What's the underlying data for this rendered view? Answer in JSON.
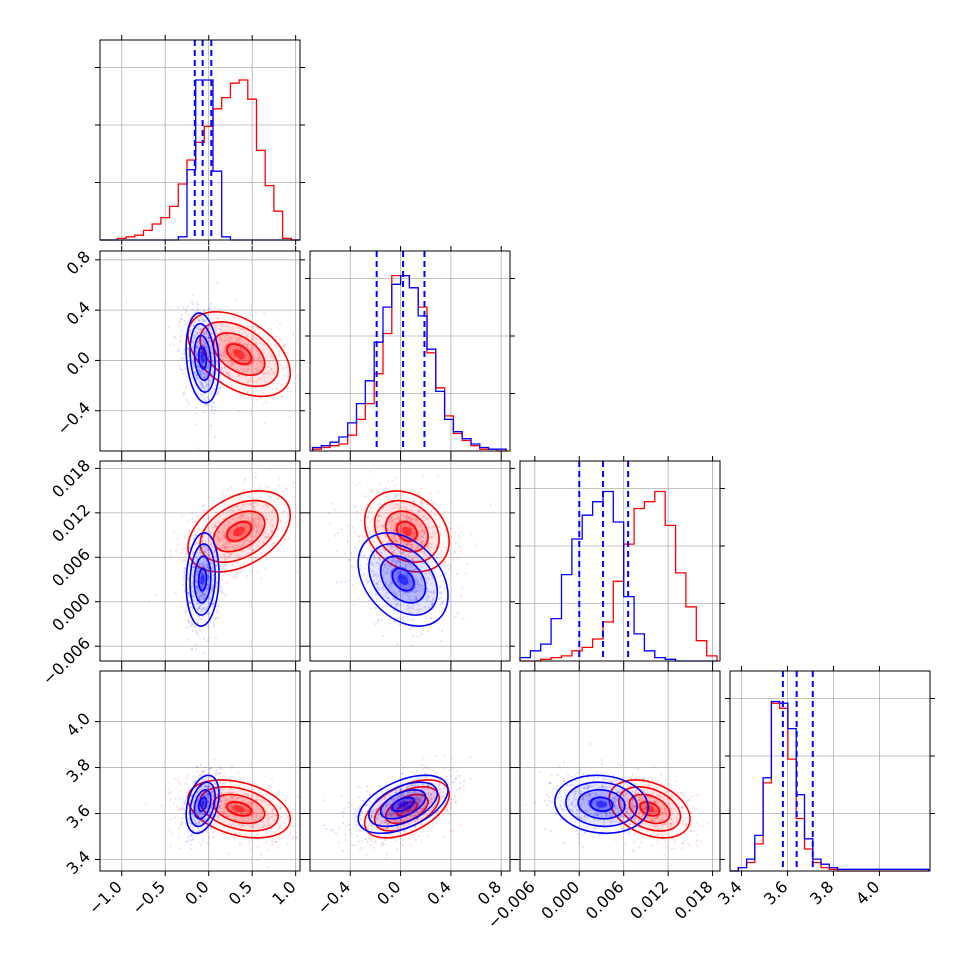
{
  "chart_data": {
    "type": "corner",
    "title": "",
    "colors": {
      "primary": "#0000ff",
      "secondary": "#ff0000"
    },
    "grid": true,
    "series": [
      {
        "color": "#0000ff",
        "means": [
          -0.07,
          0.02,
          0.003,
          3.64
        ],
        "stds": [
          0.09,
          0.17,
          0.003,
          0.06
        ]
      },
      {
        "color": "#ff0000",
        "means": [
          0.35,
          0.05,
          0.0095,
          3.62
        ],
        "stds": [
          0.28,
          0.16,
          0.0026,
          0.06
        ]
      }
    ],
    "parameters": [
      {
        "range": [
          -1.25,
          1.05
        ],
        "ticks": [
          -1.0,
          -0.5,
          0.0,
          0.5,
          1.0
        ],
        "tick_labels": [
          "−1.0",
          "−0.5",
          "0.0",
          "0.5",
          "1.0"
        ]
      },
      {
        "range": [
          -0.72,
          0.87
        ],
        "ticks": [
          -0.4,
          0.0,
          0.4,
          0.8
        ],
        "tick_labels": [
          "−0.4",
          "0.0",
          "0.4",
          "0.8"
        ]
      },
      {
        "range": [
          -0.008,
          0.019
        ],
        "ticks": [
          -0.006,
          0.0,
          0.006,
          0.012,
          0.018
        ],
        "tick_labels": [
          "−0.006",
          "0.000",
          "0.006",
          "0.012",
          "0.018"
        ]
      },
      {
        "range": [
          3.35,
          4.22
        ],
        "ticks": [
          3.4,
          3.6,
          3.8,
          4.0
        ],
        "tick_labels": [
          "3.4",
          "3.6",
          "3.8",
          "4.0"
        ]
      }
    ],
    "diagonal": [
      {
        "bin_edges": [
          -1.25,
          -1.15,
          -1.05,
          -0.95,
          -0.85,
          -0.75,
          -0.65,
          -0.55,
          -0.45,
          -0.35,
          -0.25,
          -0.15,
          -0.05,
          0.05,
          0.15,
          0.25,
          0.35,
          0.45,
          0.55,
          0.65,
          0.75,
          0.85,
          0.95,
          1.05
        ],
        "hist_blue": [
          0,
          0,
          0,
          0,
          0,
          0,
          0,
          0,
          0,
          0.02,
          0.44,
          1.0,
          1.0,
          0.43,
          0.02,
          0,
          0,
          0,
          0,
          0,
          0,
          0,
          0
        ],
        "hist_red": [
          0,
          0,
          0.01,
          0.02,
          0.03,
          0.06,
          0.1,
          0.14,
          0.21,
          0.35,
          0.5,
          0.61,
          0.71,
          0.82,
          0.89,
          0.98,
          1.0,
          0.88,
          0.56,
          0.34,
          0.18,
          0.01,
          0
        ],
        "hist_max": 1.25,
        "quantiles": [
          -0.16,
          -0.07,
          0.03
        ]
      },
      {
        "bin_edges": [
          -0.7,
          -0.63,
          -0.56,
          -0.49,
          -0.42,
          -0.35,
          -0.28,
          -0.21,
          -0.14,
          -0.07,
          0.0,
          0.07,
          0.14,
          0.21,
          0.28,
          0.35,
          0.42,
          0.49,
          0.56,
          0.63,
          0.7,
          0.77,
          0.84
        ],
        "hist_blue": [
          0.02,
          0.03,
          0.05,
          0.08,
          0.16,
          0.27,
          0.4,
          0.62,
          0.82,
          0.95,
          1.0,
          0.93,
          0.77,
          0.58,
          0.34,
          0.18,
          0.11,
          0.07,
          0.04,
          0.02,
          0.01,
          0.01
        ],
        "hist_red": [
          0.01,
          0.02,
          0.03,
          0.04,
          0.09,
          0.18,
          0.27,
          0.44,
          0.67,
          1.0,
          1.0,
          0.93,
          0.82,
          0.56,
          0.36,
          0.2,
          0.1,
          0.06,
          0.03,
          0.01,
          0.01,
          0.0
        ],
        "hist_max": 1.14,
        "quantiles": [
          -0.19,
          0.02,
          0.19
        ]
      },
      {
        "bin_edges": [
          -0.008,
          -0.0066,
          -0.0052,
          -0.0038,
          -0.0024,
          -0.001,
          0.0004,
          0.0018,
          0.0032,
          0.0046,
          0.006,
          0.0074,
          0.0088,
          0.0102,
          0.0116,
          0.013,
          0.0144,
          0.0158,
          0.0172,
          0.0186
        ],
        "hist_blue": [
          0.02,
          0.06,
          0.1,
          0.25,
          0.51,
          0.72,
          0.86,
          0.94,
          1.0,
          0.82,
          0.38,
          0.16,
          0.06,
          0.02,
          0.01,
          0,
          0,
          0,
          0
        ],
        "hist_red": [
          0,
          0,
          0.01,
          0.02,
          0.03,
          0.06,
          0.08,
          0.13,
          0.23,
          0.47,
          0.69,
          0.9,
          0.94,
          1.0,
          0.8,
          0.52,
          0.32,
          0.12,
          0.03
        ],
        "hist_max": 1.18,
        "quantiles": [
          0.0,
          0.0032,
          0.0066
        ]
      },
      {
        "bin_edges": [
          3.35,
          3.386,
          3.422,
          3.458,
          3.494,
          3.53,
          3.566,
          3.602,
          3.638,
          3.674,
          3.71,
          3.746,
          3.782,
          3.818,
          3.854,
          3.89,
          3.926,
          3.962,
          3.998,
          4.034,
          4.07,
          4.106,
          4.142,
          4.178,
          4.214
        ],
        "hist_blue": [
          0,
          0.02,
          0.07,
          0.21,
          0.55,
          1.0,
          0.99,
          0.84,
          0.45,
          0.19,
          0.07,
          0.04,
          0.02,
          0.01,
          0.01,
          0.01,
          0.01,
          0.01,
          0.01,
          0.01,
          0.01,
          0.01,
          0.01,
          0.01
        ],
        "hist_red": [
          0,
          0.02,
          0.05,
          0.16,
          0.52,
          0.99,
          0.96,
          0.66,
          0.31,
          0.13,
          0.05,
          0.02,
          0.01,
          0.0,
          0,
          0,
          0,
          0,
          0,
          0,
          0,
          0,
          0,
          0
        ],
        "hist_max": 1.18,
        "quantiles": [
          3.58,
          3.64,
          3.71
        ]
      }
    ],
    "correlations": {
      "blue": {
        "1-0": -0.2,
        "2-0": 0.1,
        "2-1": -0.35,
        "3-0": 0.35,
        "3-1": 0.5,
        "3-2": -0.1
      },
      "red": {
        "1-0": -0.45,
        "2-0": 0.4,
        "2-1": -0.25,
        "3-0": -0.35,
        "3-1": 0.5,
        "3-2": -0.35
      }
    }
  }
}
